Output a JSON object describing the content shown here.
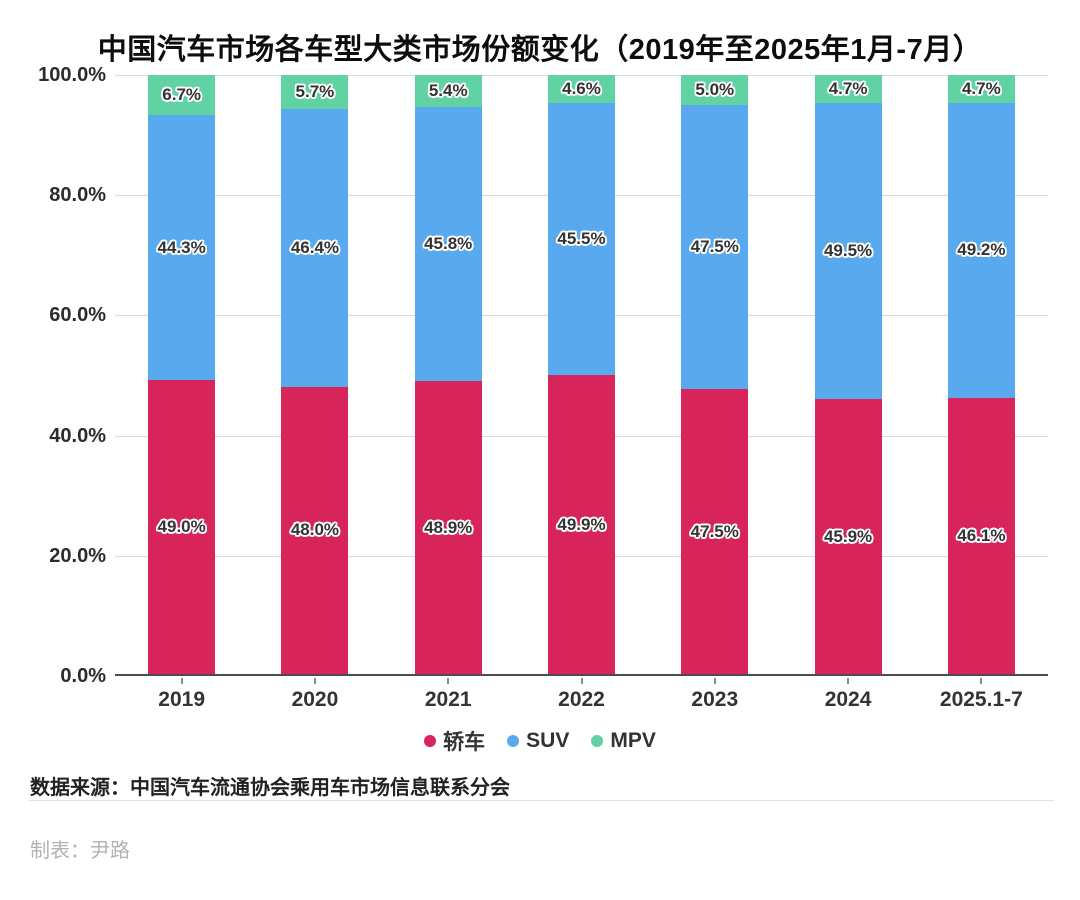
{
  "title": "中国汽车市场各车型大类市场份额变化（2019年至2025年1月-7月）",
  "chart_data": {
    "type": "bar",
    "stacked": true,
    "unit": "%",
    "categories": [
      "2019",
      "2020",
      "2021",
      "2022",
      "2023",
      "2024",
      "2025.1-7"
    ],
    "series": [
      {
        "name": "轿车",
        "color": "#d7245b",
        "values": [
          49.0,
          48.0,
          48.9,
          49.9,
          47.5,
          45.9,
          46.1
        ]
      },
      {
        "name": "SUV",
        "color": "#58a9ee",
        "values": [
          44.3,
          46.4,
          45.8,
          45.5,
          47.5,
          49.5,
          49.2
        ]
      },
      {
        "name": "MPV",
        "color": "#60d2a3",
        "values": [
          6.7,
          5.7,
          5.4,
          4.6,
          5.0,
          4.7,
          4.7
        ]
      }
    ],
    "title": "中国汽车市场各车型大类市场份额变化（2019年至2025年1月-7月）",
    "xlabel": "",
    "ylabel": "",
    "ylim": [
      0,
      100
    ],
    "yticks": [
      {
        "value": 100,
        "label": "100.0%"
      },
      {
        "value": 80,
        "label": "80.0%"
      },
      {
        "value": 60,
        "label": "60.0%"
      },
      {
        "value": 40,
        "label": "40.0%"
      },
      {
        "value": 20,
        "label": "20.0%"
      },
      {
        "value": 0,
        "label": "0.0%"
      }
    ],
    "grid": true,
    "legend_position": "bottom",
    "value_label_decimals": 1
  },
  "legend": {
    "items": [
      {
        "label": "轿车",
        "color": "#d7245b"
      },
      {
        "label": "SUV",
        "color": "#58a9ee"
      },
      {
        "label": "MPV",
        "color": "#60d2a3"
      }
    ]
  },
  "source": {
    "label": "数据来源：中国汽车流通协会乘用车市场信息联系分会"
  },
  "credit": {
    "label": "制表：尹路"
  },
  "colors": {
    "background": "#ffffff",
    "grid_line": "#dcdcdc",
    "axis_line": "#4d4d4d",
    "axis_text": "#2b2b2b",
    "value_label_text": "#333333",
    "source_text": "#222222",
    "credit_text": "#b3b3b3",
    "divider": "#e3e3e3"
  }
}
